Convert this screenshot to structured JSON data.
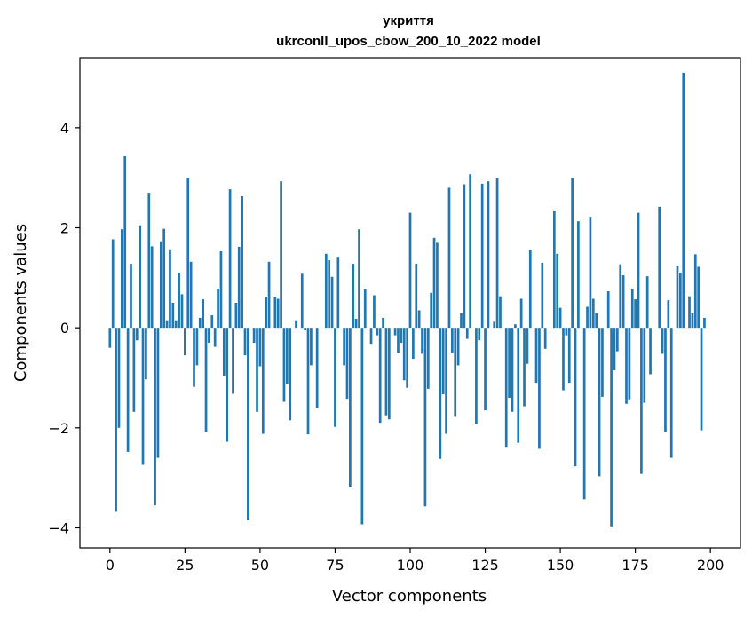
{
  "chart_data": {
    "type": "bar",
    "title": "укриття",
    "subtitle": "ukrconll_upos_cbow_200_10_2022 model",
    "xlabel": "Vector components",
    "ylabel": "Components values",
    "xlim": [
      -10,
      210
    ],
    "ylim": [
      -4.4,
      5.4
    ],
    "xticks": [
      0,
      25,
      50,
      75,
      100,
      125,
      150,
      175,
      200
    ],
    "yticks": [
      -4,
      -2,
      0,
      2,
      4
    ],
    "xtick_labels": [
      "0",
      "25",
      "50",
      "75",
      "100",
      "125",
      "150",
      "175",
      "200"
    ],
    "ytick_labels": [
      "−4",
      "−2",
      "0",
      "2",
      "4"
    ],
    "bar_color": "#1f77b4",
    "grid": false,
    "values": [
      -0.4,
      1.77,
      -3.68,
      -2.0,
      1.97,
      3.43,
      -2.48,
      1.28,
      -1.68,
      -0.25,
      2.05,
      -2.74,
      -1.03,
      2.7,
      1.63,
      -3.55,
      -2.6,
      1.73,
      1.98,
      0.15,
      1.57,
      0.5,
      0.15,
      1.1,
      0.67,
      -0.55,
      3.0,
      1.32,
      -1.18,
      -0.75,
      0.2,
      0.57,
      -2.08,
      -0.3,
      0.25,
      -0.38,
      0.78,
      1.53,
      -0.97,
      -2.28,
      2.77,
      -1.32,
      0.5,
      1.62,
      2.63,
      -0.55,
      -3.85,
      0.0,
      -0.3,
      -1.68,
      -0.77,
      -2.12,
      0.62,
      1.32,
      0.0,
      0.62,
      0.58,
      2.93,
      -1.48,
      -1.12,
      -1.85,
      0.0,
      0.15,
      0.0,
      1.08,
      -0.05,
      -2.13,
      -0.75,
      0.0,
      -1.6,
      0.0,
      0.0,
      1.48,
      1.35,
      1.02,
      -1.98,
      1.42,
      0.0,
      -0.75,
      -1.42,
      -3.18,
      1.28,
      0.18,
      1.97,
      -3.93,
      0.77,
      0.0,
      -0.32,
      0.65,
      -0.15,
      -1.9,
      0.2,
      -1.75,
      -1.83,
      0.0,
      -0.15,
      -0.5,
      -0.3,
      -1.05,
      -1.2,
      2.3,
      -0.62,
      1.28,
      0.35,
      -0.52,
      -3.57,
      -1.22,
      0.7,
      1.8,
      1.7,
      -2.62,
      -1.33,
      -2.12,
      2.8,
      -0.5,
      -1.78,
      -0.75,
      0.3,
      2.87,
      -0.22,
      3.07,
      0.0,
      -1.93,
      -0.25,
      2.88,
      -1.65,
      2.93,
      0.0,
      0.12,
      3.0,
      0.63,
      0.0,
      -2.38,
      -1.4,
      -1.68,
      0.07,
      -2.3,
      0.58,
      -1.57,
      -0.72,
      1.55,
      0.0,
      -1.1,
      -2.42,
      1.3,
      -0.42,
      0.0,
      0.0,
      2.33,
      1.48,
      0.4,
      -1.25,
      -0.15,
      -1.1,
      3.0,
      -2.77,
      2.13,
      0.0,
      -3.43,
      0.42,
      2.22,
      0.58,
      0.3,
      -2.97,
      -1.38,
      0.0,
      0.73,
      -3.97,
      -0.85,
      -0.47,
      1.27,
      1.05,
      -1.52,
      -1.43,
      0.78,
      0.57,
      2.3,
      -2.92,
      -1.5,
      1.03,
      -0.93,
      0.0,
      0.0,
      2.42,
      -0.52,
      -2.08,
      0.55,
      -2.6,
      0.0,
      1.23,
      1.1,
      5.1,
      0.0,
      0.63,
      0.3,
      1.47,
      1.22,
      -2.05,
      0.2
    ]
  }
}
